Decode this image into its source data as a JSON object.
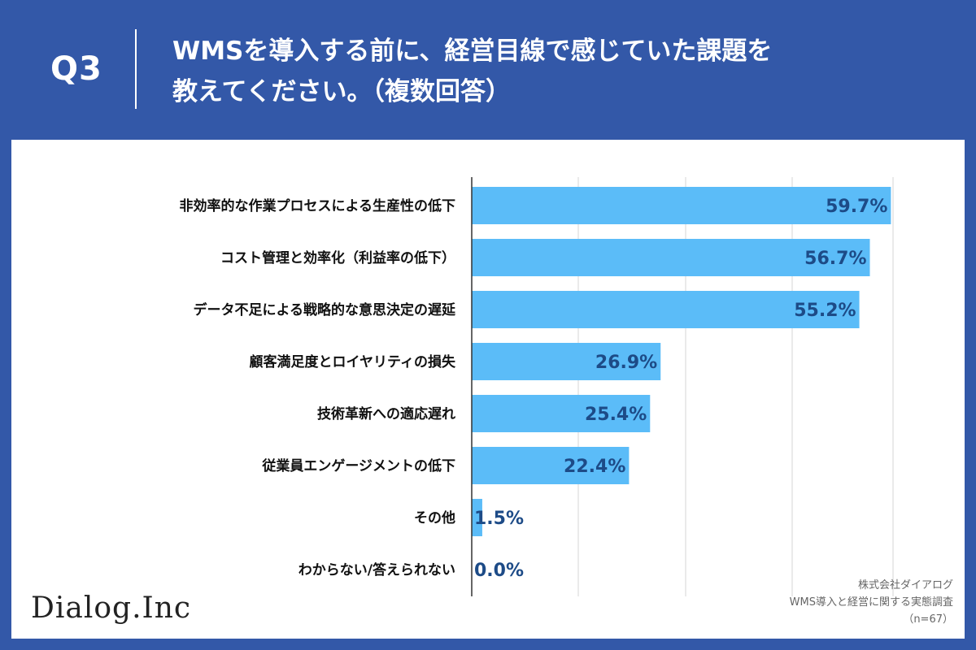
{
  "header": {
    "question_number": "Q3",
    "title_line1": "WMSを導入する前に、経営目線で感じていた課題を",
    "title_line2": "教えてください。（複数回答）"
  },
  "brand": {
    "logo_text": "Dialog.Inc"
  },
  "source": {
    "company": "株式会社ダイアログ",
    "survey": "WMS導入と経営に関する実態調査",
    "sample": "（n=67）"
  },
  "colors": {
    "background": "#3358a8",
    "bar": "#5bbcf8",
    "value_text": "#1d4b87"
  },
  "chart_data": {
    "type": "bar",
    "orientation": "horizontal",
    "categories": [
      "非効率的な作業プロセスによる生産性の低下",
      "コスト管理と効率化（利益率の低下）",
      "データ不足による戦略的な意思決定の遅延",
      "顧客満足度とロイヤリティの損失",
      "技術革新への適応遅れ",
      "従業員エンゲージメントの低下",
      "その他",
      "わからない/答えられない"
    ],
    "values": [
      59.7,
      56.7,
      55.2,
      26.9,
      25.4,
      22.4,
      1.5,
      0.0
    ],
    "value_labels": [
      "59.7%",
      "56.7%",
      "55.2%",
      "26.9%",
      "25.4%",
      "22.4%",
      "1.5%",
      "0.0%"
    ],
    "xlim": [
      0,
      60
    ],
    "grid": true,
    "title": "",
    "xlabel": "",
    "ylabel": ""
  }
}
